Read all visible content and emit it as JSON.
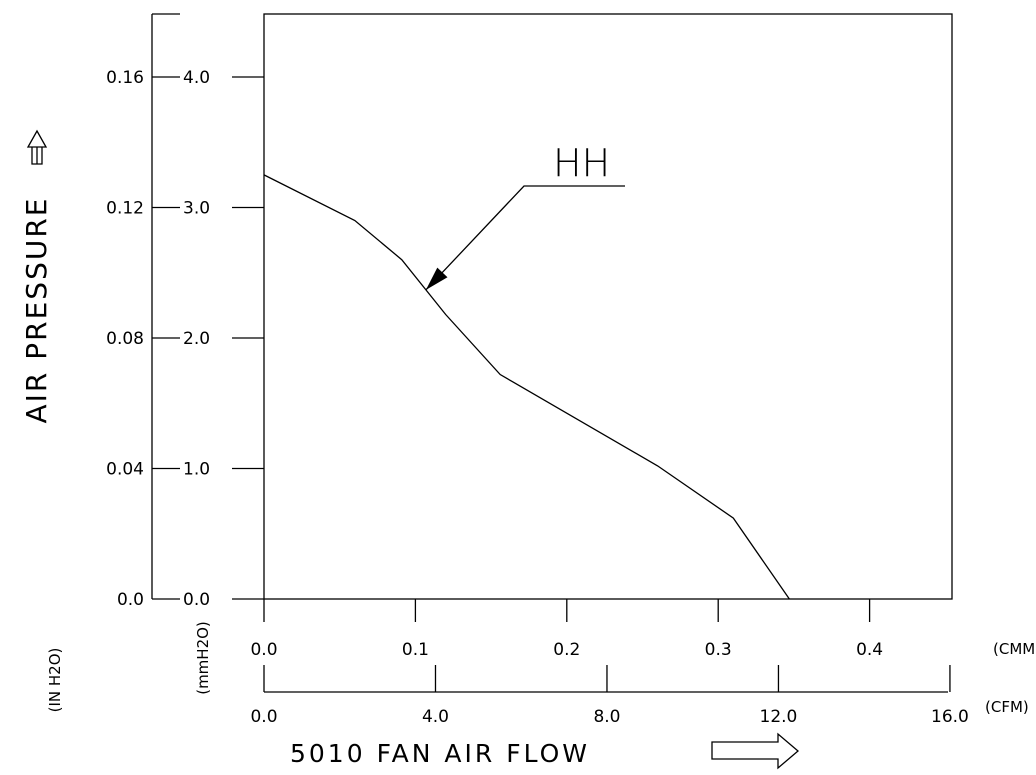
{
  "chart_data": {
    "type": "line",
    "title": "",
    "xlabel": "5010 FAN AIR FLOW",
    "ylabel": "AIR PRESSURE",
    "grid": false,
    "xlim_cmm": [
      0,
      0.45
    ],
    "ylim_mmh2o": [
      0,
      4.4
    ],
    "axes": {
      "y_inner": {
        "unit": "(mmH2O)",
        "ticks": [
          "0.0",
          "1.0",
          "2.0",
          "3.0",
          "4.0"
        ]
      },
      "y_outer": {
        "unit": "(IN H2O)",
        "ticks": [
          "0.0",
          "0.04",
          "0.08",
          "0.12",
          "0.16"
        ]
      },
      "x_inner": {
        "unit": "(CMM)",
        "ticks": [
          "0.0",
          "0.1",
          "0.2",
          "0.3",
          "0.4"
        ]
      },
      "x_outer": {
        "unit": "(CFM)",
        "ticks": [
          "0.0",
          "4.0",
          "8.0",
          "12.0",
          "16.0"
        ]
      }
    },
    "series": [
      {
        "name": "HH",
        "x": [
          0.0,
          0.06,
          0.091,
          0.12,
          0.156,
          0.26,
          0.31,
          0.347
        ],
        "y": [
          3.25,
          2.9,
          2.6,
          2.18,
          1.72,
          1.02,
          0.62,
          0.0
        ]
      }
    ]
  }
}
